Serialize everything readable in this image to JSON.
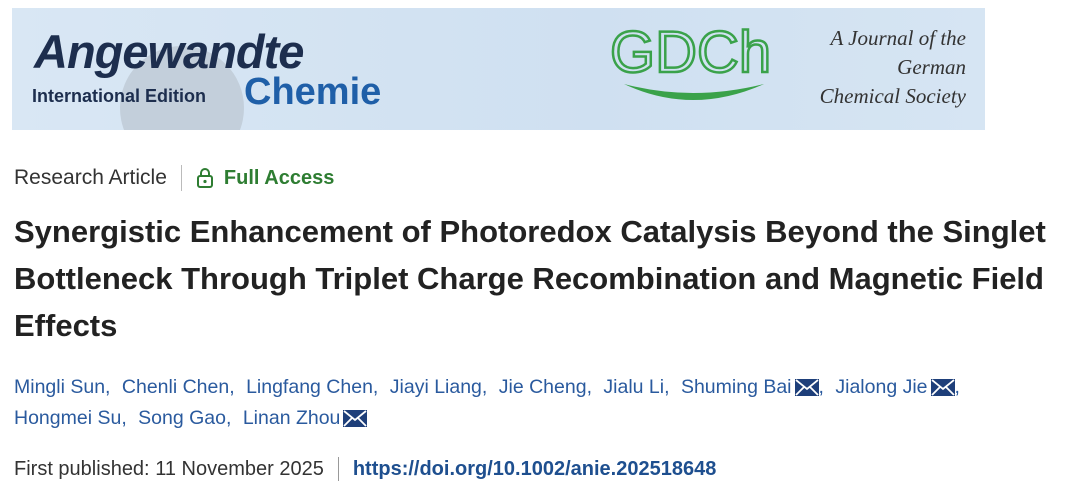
{
  "banner": {
    "logo_main": "Angewandte",
    "logo_edition": "International Edition",
    "logo_sub": "Chemie",
    "society_logo": "GDCh",
    "society_lines": [
      "A Journal of the",
      "German",
      "Chemical Society"
    ]
  },
  "article": {
    "type": "Research Article",
    "access": "Full Access",
    "title": "Synergistic Enhancement of Photoredox Catalysis Beyond the Singlet Bottleneck Through Triplet Charge Recombination and Magnetic Field Effects",
    "authors": {
      "separator": ",",
      "list": [
        {
          "name": "Mingli Sun",
          "corresponding": false
        },
        {
          "name": "Chenli Chen",
          "corresponding": false
        },
        {
          "name": "Lingfang Chen",
          "corresponding": false
        },
        {
          "name": "Jiayi Liang",
          "corresponding": false
        },
        {
          "name": "Jie Cheng",
          "corresponding": false
        },
        {
          "name": "Jialu Li",
          "corresponding": false
        },
        {
          "name": "Shuming Bai",
          "corresponding": true
        },
        {
          "name": "Jialong Jie",
          "corresponding": true
        },
        {
          "name": "Hongmei Su",
          "corresponding": false
        },
        {
          "name": "Song Gao",
          "corresponding": false
        },
        {
          "name": "Linan Zhou",
          "corresponding": true
        }
      ]
    },
    "published_label": "First published:",
    "published_date": "11 November 2025",
    "doi": "https://doi.org/10.1002/anie.202518648"
  }
}
